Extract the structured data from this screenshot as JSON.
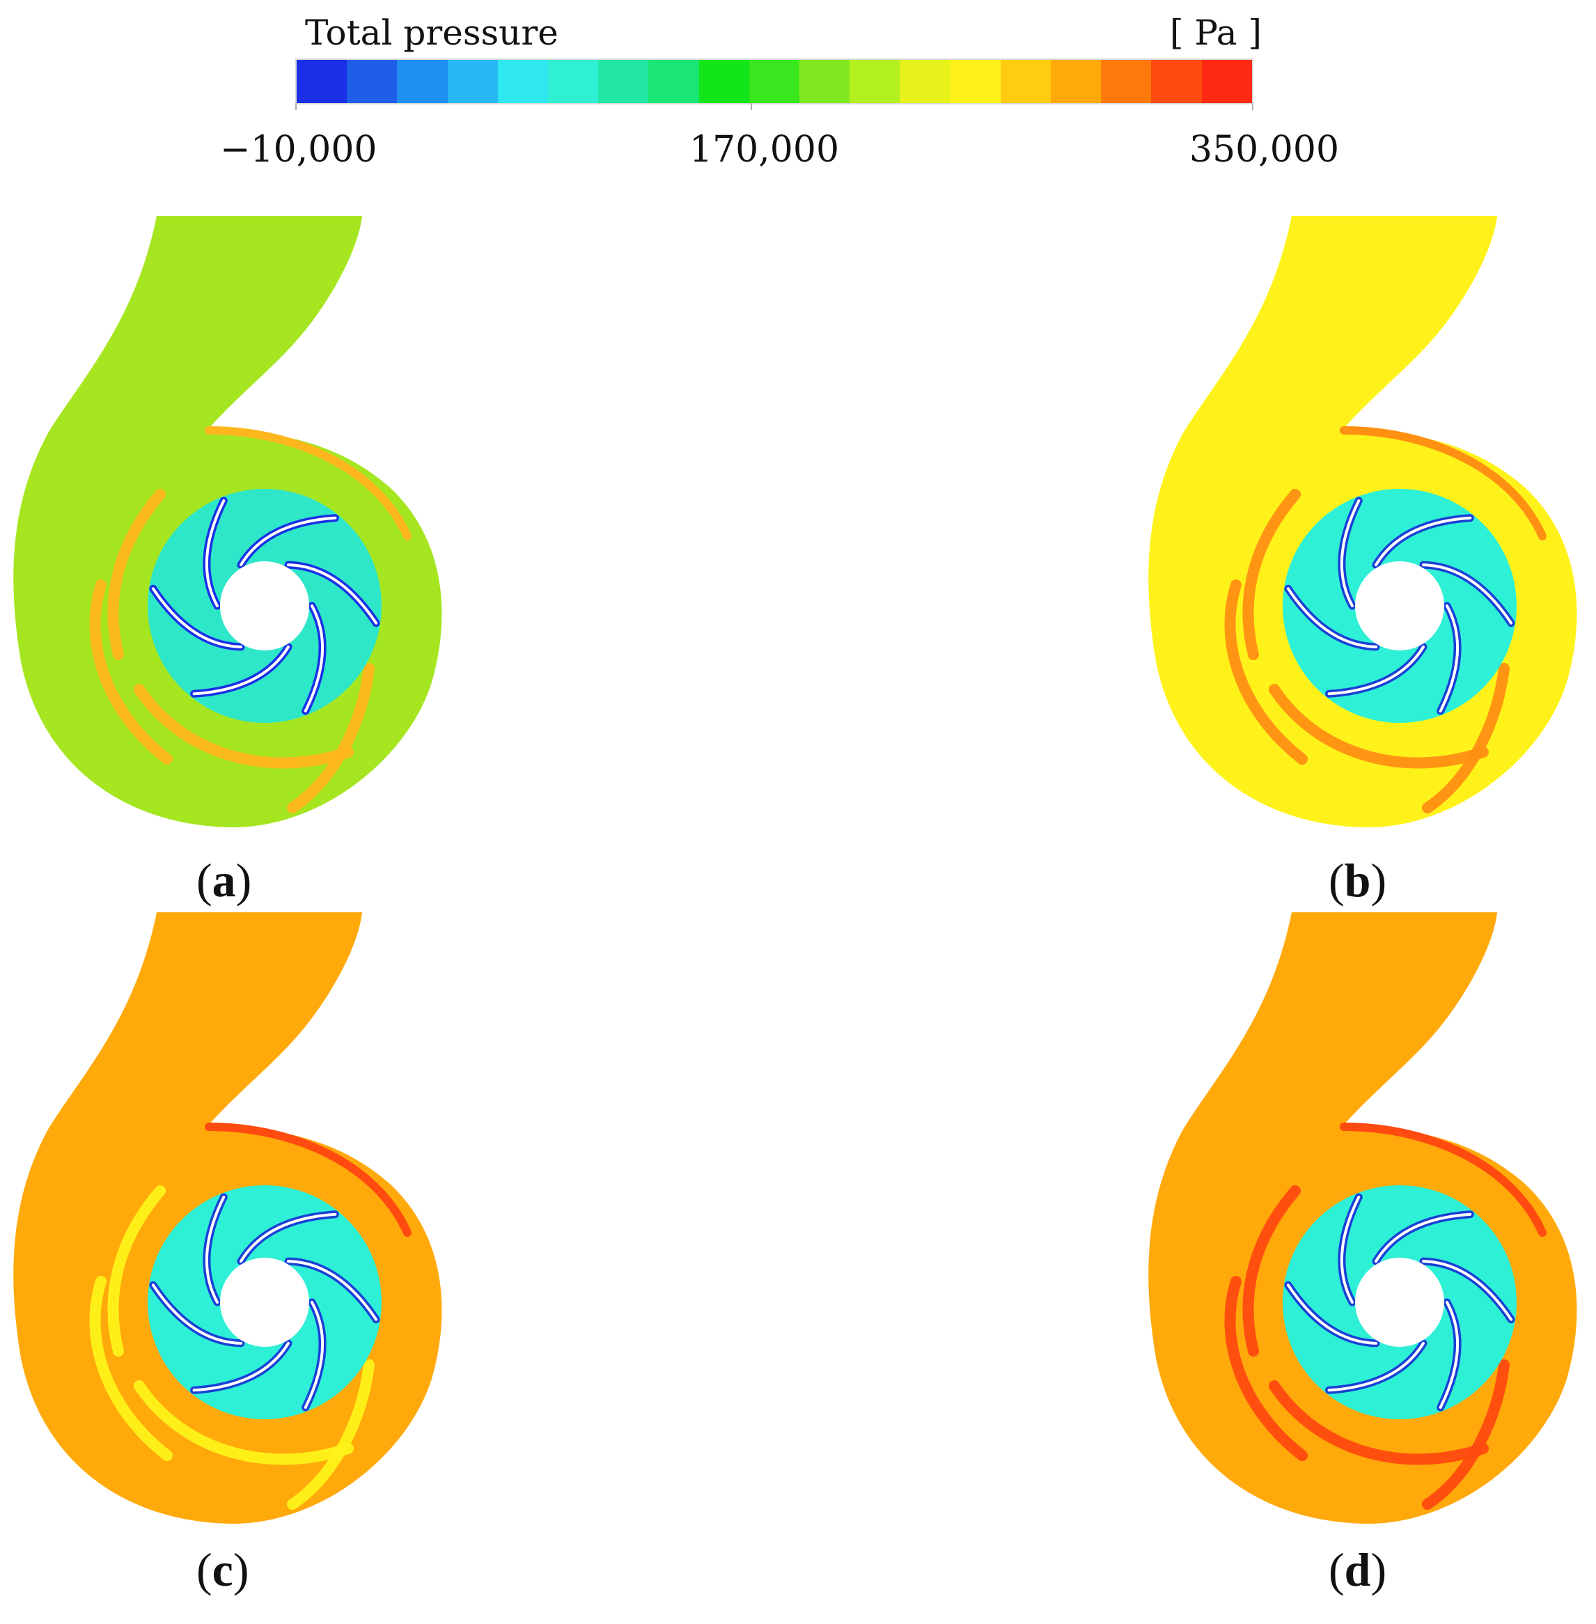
{
  "legend": {
    "title": "Total pressure",
    "unit": "[ Pa ]",
    "ticks": [
      "−10,000",
      "170,000",
      "350,000"
    ],
    "colors": [
      "#1a2fe6",
      "#1f5fe8",
      "#1f8ff0",
      "#28b8f5",
      "#2ee7ef",
      "#2ff0d2",
      "#22e6a6",
      "#1ae676",
      "#12e619",
      "#3ae61e",
      "#7fe81e",
      "#b2f01f",
      "#e6f21a",
      "#fff21a",
      "#ffcc0f",
      "#ffa90b",
      "#ff7a0b",
      "#ff4a10",
      "#ff2a14"
    ]
  },
  "panels": [
    {
      "label_open": "(",
      "label_letter": "a",
      "label_close": ")",
      "colors": {
        "volute": "#a6e620",
        "band": "#ffb61c",
        "rotor": "#2ee6c8",
        "blade": "#1a2fe6",
        "streak": "#ffb61c"
      }
    },
    {
      "label_open": "(",
      "label_letter": "b",
      "label_close": ")",
      "colors": {
        "volute": "#fff21a",
        "band": "#ff9012",
        "rotor": "#2ef0d6",
        "blade": "#1a3fd6",
        "streak": "#ff8f12"
      }
    },
    {
      "label_open": "(",
      "label_letter": "c",
      "label_close": ")",
      "colors": {
        "volute": "#ffa90b",
        "band": "#ff4a10",
        "rotor": "#2ef0d6",
        "blade": "#1a3fd6",
        "streak": "#fff21a"
      }
    },
    {
      "label_open": "(",
      "label_letter": "d",
      "label_close": ")",
      "colors": {
        "volute": "#ffa90b",
        "band": "#ff4a10",
        "rotor": "#2ef0d6",
        "blade": "#1a3fd6",
        "streak": "#ff4a10"
      }
    }
  ]
}
